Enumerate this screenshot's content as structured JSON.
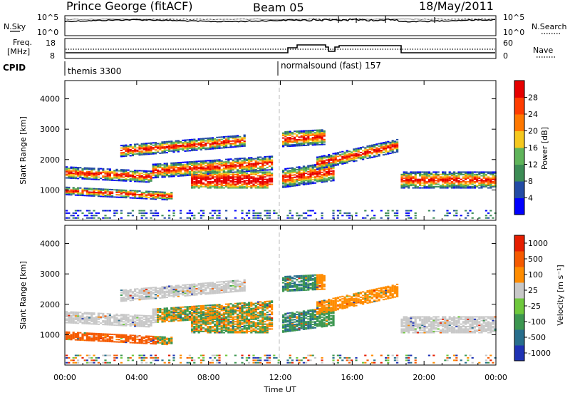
{
  "header": {
    "station": "Prince George (fitACF)",
    "beam": "Beam 05",
    "date": "18/May/2011"
  },
  "noise_panel": {
    "left_label": "N.Sky",
    "right_label": "N.Search",
    "ticks": [
      "10^5",
      "10^0"
    ]
  },
  "freq_panel": {
    "left_label_1": "Freq.",
    "left_label_2": "[MHz]",
    "left_ticks": [
      "18",
      "8"
    ],
    "right_label": "Nave",
    "right_ticks": [
      "60",
      "0"
    ]
  },
  "cpid_panel": {
    "label": "CPID",
    "modes": [
      {
        "name": "themis 3300",
        "start_hour": 0
      },
      {
        "name": "normalsound (fast) 157",
        "start_hour": 12
      }
    ]
  },
  "chart_data": [
    {
      "type": "heatmap",
      "name": "power",
      "ylabel": "Slant Range [km]",
      "ylim": [
        0,
        4600
      ],
      "yticks": [
        "1000",
        "2000",
        "3000",
        "4000"
      ],
      "xlim": [
        0,
        24
      ],
      "colorbar_label": "Power [dB]",
      "colorbar_ticks": [
        "4",
        "8",
        "12",
        "16",
        "20",
        "24",
        "28"
      ],
      "colors": [
        "#0000ff",
        "#234ba5",
        "#3c8c55",
        "#5fb45a",
        "#f5c81e",
        "#ff7800",
        "#ff3c00",
        "#e60000"
      ]
    },
    {
      "type": "heatmap",
      "name": "velocity",
      "ylabel": "Slant Range [km]",
      "ylim": [
        0,
        4600
      ],
      "yticks": [
        "1000",
        "2000",
        "3000",
        "4000"
      ],
      "xlim": [
        0,
        24
      ],
      "xlabel": "Time UT",
      "xticks": [
        "00:00",
        "04:00",
        "08:00",
        "12:00",
        "16:00",
        "20:00",
        "00:00"
      ],
      "colorbar_label": "Velocity [m s⁻¹]",
      "colorbar_ticks": [
        "1000",
        "500",
        "100",
        "25",
        "-25",
        "-100",
        "-500",
        "-1000"
      ],
      "colors": [
        "#1e32b4",
        "#286e8c",
        "#3c9650",
        "#6ec83c",
        "#c8c8c8",
        "#ff8c00",
        "#f55a00",
        "#e61e00"
      ]
    }
  ]
}
